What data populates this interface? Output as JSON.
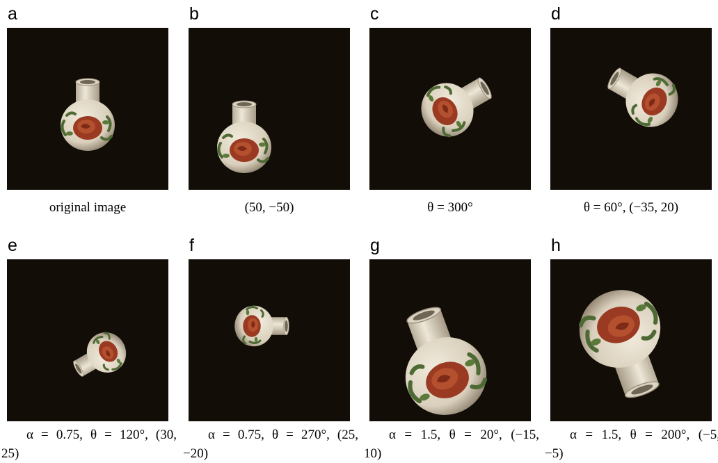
{
  "panels": [
    {
      "label": "a",
      "caption": "original image"
    },
    {
      "label": "b",
      "caption": "(50, −50)"
    },
    {
      "label": "c",
      "caption": "θ = 300°"
    },
    {
      "label": "d",
      "caption": "θ = 60°, (−35, 20)"
    },
    {
      "label": "e",
      "caption": "α = 0.75, θ = 120°, (30, 25)"
    },
    {
      "label": "f",
      "caption": "α = 0.75, θ = 270°, (25, −20)"
    },
    {
      "label": "g",
      "caption": "α = 1.5, θ = 20°, (−15, 10)"
    },
    {
      "label": "h",
      "caption": "α = 1.5, θ = 200°, (−5, −5)"
    }
  ]
}
